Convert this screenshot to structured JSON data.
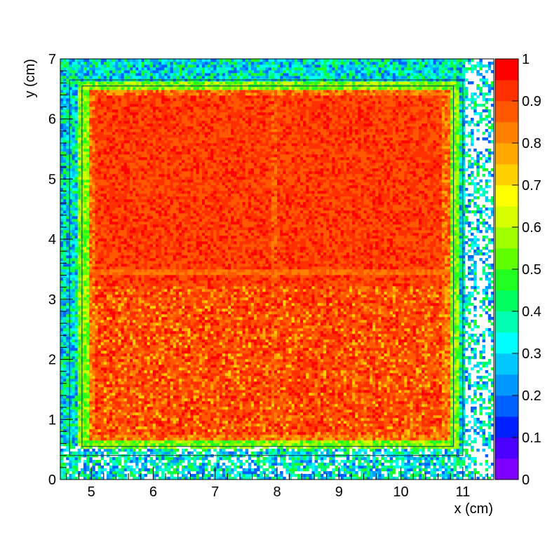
{
  "chart_data": {
    "type": "heatmap",
    "title": "",
    "xlabel": "x (cm)",
    "ylabel": "y (cm)",
    "xlim": [
      4.5,
      11.5
    ],
    "ylim": [
      0,
      7
    ],
    "x_ticks": [
      "5",
      "6",
      "7",
      "8",
      "9",
      "10",
      "11"
    ],
    "y_ticks": [
      "0",
      "1",
      "2",
      "3",
      "4",
      "5",
      "6",
      "7"
    ],
    "colorbar": {
      "range": [
        0,
        1
      ],
      "ticks": [
        "0",
        "0.1",
        "0.2",
        "0.3",
        "0.4",
        "0.5",
        "0.6",
        "0.7",
        "0.8",
        "0.9",
        "1"
      ],
      "palette": [
        "#7f00ff",
        "#4b00ff",
        "#0020ff",
        "#0060ff",
        "#0098ff",
        "#00c8ff",
        "#00ffff",
        "#00ffb0",
        "#00ff60",
        "#20ff20",
        "#60ff00",
        "#a0ff00",
        "#d8ff00",
        "#ffff00",
        "#ffd000",
        "#ffa800",
        "#ff8000",
        "#ff5800",
        "#ff3000",
        "#ff0000"
      ]
    },
    "regions": {
      "sensitive_area": {
        "x": [
          4.95,
          10.8
        ],
        "y": [
          0.65,
          6.5
        ],
        "efficiency": 0.97
      },
      "gap_horizontal_y": 3.45,
      "gap_vertical_x": 7.95,
      "gap_efficiency": 0.8,
      "edge_band_efficiency": 0.45,
      "outer_efficiency": 0.15
    },
    "frames": [
      {
        "x": [
          4.85,
          10.85
        ],
        "y": [
          0.55,
          6.55
        ]
      },
      {
        "x": [
          4.65,
          11.0
        ],
        "y": [
          0.4,
          6.65
        ]
      }
    ],
    "binning": {
      "nx": 150,
      "ny": 150
    }
  }
}
